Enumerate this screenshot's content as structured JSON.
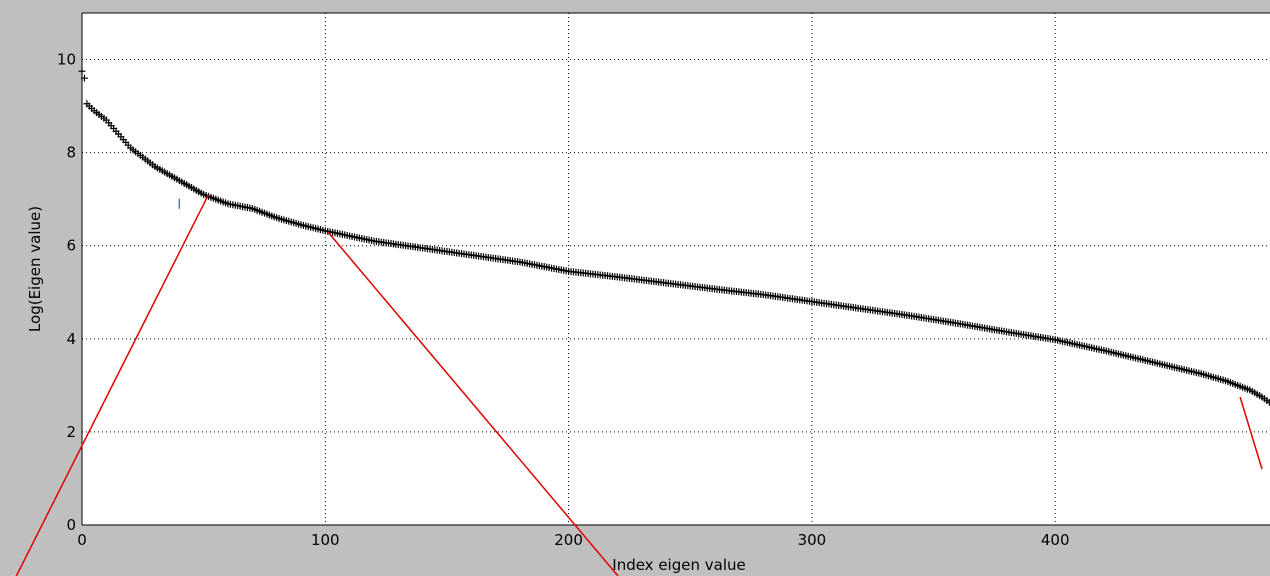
{
  "chart_data": {
    "type": "scatter",
    "title": "",
    "xlabel": "Index eigen value",
    "ylabel": "Log(Eigen value)",
    "xlim": [
      0,
      490
    ],
    "ylim": [
      0,
      11
    ],
    "grid": true,
    "marker": "plus",
    "marker_color": "#000000",
    "x_ticks": [
      0,
      100,
      200,
      300,
      400
    ],
    "x_tick_labels": [
      "0",
      "100",
      "200",
      "300",
      "400"
    ],
    "y_ticks": [
      0,
      2,
      4,
      6,
      8,
      10
    ],
    "y_tick_labels": [
      "0",
      "2",
      "4",
      "6",
      "8",
      "10"
    ],
    "series": [
      {
        "n_points": 490,
        "profile": [
          [
            0,
            9.75
          ],
          [
            1,
            9.6
          ],
          [
            2,
            9.05
          ],
          [
            5,
            8.9
          ],
          [
            10,
            8.7
          ],
          [
            15,
            8.4
          ],
          [
            20,
            8.1
          ],
          [
            30,
            7.7
          ],
          [
            40,
            7.4
          ],
          [
            50,
            7.1
          ],
          [
            60,
            6.9
          ],
          [
            70,
            6.8
          ],
          [
            80,
            6.6
          ],
          [
            90,
            6.45
          ],
          [
            100,
            6.32
          ],
          [
            120,
            6.1
          ],
          [
            140,
            5.95
          ],
          [
            160,
            5.8
          ],
          [
            180,
            5.65
          ],
          [
            200,
            5.45
          ],
          [
            220,
            5.33
          ],
          [
            240,
            5.2
          ],
          [
            260,
            5.07
          ],
          [
            280,
            4.95
          ],
          [
            300,
            4.8
          ],
          [
            320,
            4.65
          ],
          [
            340,
            4.5
          ],
          [
            360,
            4.33
          ],
          [
            380,
            4.15
          ],
          [
            400,
            3.98
          ],
          [
            420,
            3.75
          ],
          [
            440,
            3.5
          ],
          [
            460,
            3.25
          ],
          [
            470,
            3.1
          ],
          [
            480,
            2.9
          ],
          [
            485,
            2.75
          ],
          [
            489,
            2.6
          ]
        ]
      }
    ],
    "outlier_point": {
      "x": 40,
      "y": 6.9,
      "color": "#3a7ad9"
    },
    "annotation_color": "#e00000",
    "annotations": [
      {
        "from": [
          52,
          7.1
        ],
        "to": [
          -28,
          -1.2
        ]
      },
      {
        "from": [
          101,
          6.3
        ],
        "to": [
          222,
          -1.2
        ]
      },
      {
        "from": [
          476,
          2.75
        ],
        "to": [
          485,
          1.2
        ]
      }
    ]
  }
}
